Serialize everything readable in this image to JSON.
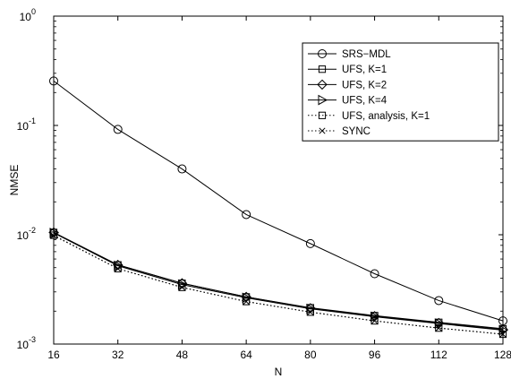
{
  "chart_data": {
    "type": "line",
    "xlabel": "N",
    "ylabel": "NMSE",
    "y_scale": "log",
    "xlim": [
      16,
      128
    ],
    "ylim": [
      0.001,
      1
    ],
    "x_ticks": [
      "16",
      "32",
      "48",
      "64",
      "80",
      "96",
      "112",
      "128"
    ],
    "y_ticks": [
      {
        "value": 1,
        "mantissa": "10",
        "exponent": "0"
      },
      {
        "value": 0.1,
        "mantissa": "10",
        "exponent": "-1"
      },
      {
        "value": 0.01,
        "mantissa": "10",
        "exponent": "-2"
      },
      {
        "value": 0.001,
        "mantissa": "10",
        "exponent": "-3"
      }
    ],
    "grid": false,
    "legend_position": "top-right",
    "x": [
      16,
      32,
      48,
      64,
      80,
      96,
      112,
      128
    ],
    "series": [
      {
        "name": "SRS−MDL",
        "marker": "circle",
        "line": "solid",
        "values": [
          0.255,
          0.092,
          0.04,
          0.0153,
          0.0083,
          0.0044,
          0.0025,
          0.00163
        ]
      },
      {
        "name": "UFS, K=1",
        "marker": "square",
        "line": "solid",
        "values": [
          0.0105,
          0.0053,
          0.0036,
          0.0027,
          0.00215,
          0.00182,
          0.00158,
          0.00138
        ]
      },
      {
        "name": "UFS, K=2",
        "marker": "diamond",
        "line": "solid",
        "values": [
          0.0105,
          0.0053,
          0.0036,
          0.0027,
          0.00213,
          0.0018,
          0.00156,
          0.00136
        ]
      },
      {
        "name": "UFS, K=4",
        "marker": "triangle-right",
        "line": "solid",
        "values": [
          0.0104,
          0.0052,
          0.0035,
          0.00265,
          0.0021,
          0.00178,
          0.00154,
          0.00134
        ]
      },
      {
        "name": "UFS, analysis, K=1",
        "marker": "square",
        "line": "dotted",
        "values": [
          0.0099,
          0.0049,
          0.0033,
          0.00245,
          0.00196,
          0.00163,
          0.0014,
          0.00123
        ]
      },
      {
        "name": "SYNC",
        "marker": "x",
        "line": "dotted",
        "values": [
          0.0098,
          0.0049,
          0.0033,
          0.00245,
          0.00196,
          0.00163,
          0.0014,
          0.00123
        ]
      }
    ]
  }
}
